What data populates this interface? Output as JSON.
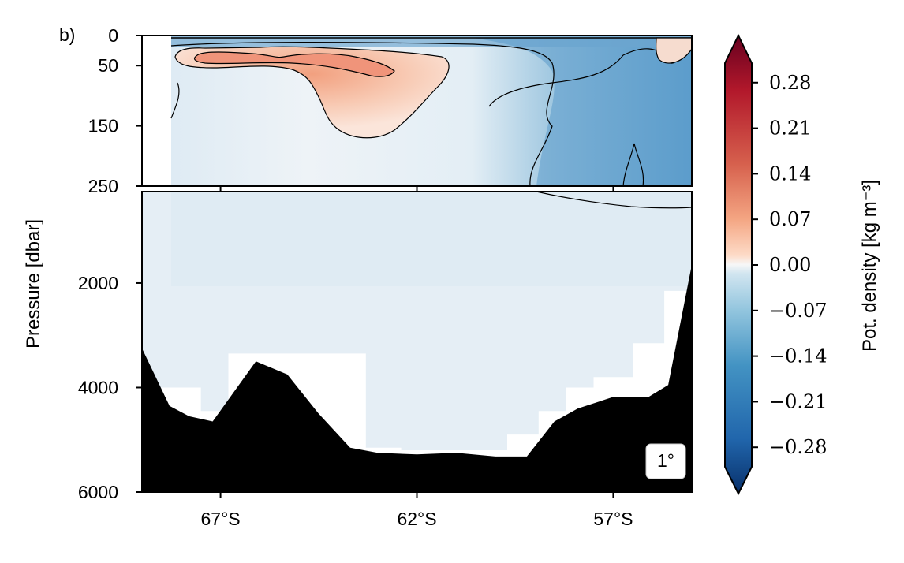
{
  "chart_data": {
    "type": "heatmap",
    "panel_label": "b)",
    "ylabel": "Pressure [dbar]",
    "colorbar_label": "Pot. density [kg m⁻³]",
    "badge": "1°",
    "xlim": [
      -69,
      -55
    ],
    "x_ticks": [
      -67,
      -62,
      -57
    ],
    "x_tick_labels": [
      "67°S",
      "62°S",
      "57°S"
    ],
    "upper_panel": {
      "ylim": [
        250,
        0
      ],
      "y_ticks": [
        0,
        50,
        150,
        250
      ],
      "y_tick_labels": [
        "0",
        "50",
        "150",
        "250"
      ]
    },
    "lower_panel": {
      "ylim": [
        6000,
        250
      ],
      "y_ticks": [
        2000,
        4000,
        6000
      ],
      "y_tick_labels": [
        "2000",
        "4000",
        "6000"
      ]
    },
    "colorbar": {
      "range": [
        -0.31,
        0.31
      ],
      "ticks": [
        0.28,
        0.21,
        0.14,
        0.07,
        0.0,
        -0.07,
        -0.14,
        -0.21,
        -0.28
      ],
      "tick_labels": [
        "0.28",
        "0.21",
        "0.14",
        "0.07",
        "0.00",
        "−0.07",
        "−0.14",
        "−0.21",
        "−0.28"
      ],
      "colormap": "RdBu_r",
      "extend": "both"
    },
    "bathymetry": {
      "lat": [
        -69,
        -68.3,
        -67.8,
        -67.2,
        -66.1,
        -65.3,
        -64.5,
        -63.7,
        -63.0,
        -62.0,
        -61.0,
        -60.0,
        -59.2,
        -58.5,
        -57.9,
        -57.0,
        -56.1,
        -55.6,
        -55
      ],
      "depth": [
        3250,
        4350,
        4550,
        4650,
        3500,
        3750,
        4500,
        5150,
        5250,
        5280,
        5250,
        5320,
        5320,
        4650,
        4400,
        4180,
        4180,
        3950,
        1650
      ]
    },
    "data_mask_edge": {
      "lat": [
        -68.3,
        -67.5,
        -66.8,
        -64.0,
        -63.3,
        -62.4,
        -61.5,
        -59.7,
        -58.9,
        -58.2,
        -57.5,
        -56.5,
        -55.7
      ],
      "depth": [
        4000,
        4450,
        3350,
        3350,
        5150,
        5200,
        5200,
        4900,
        4450,
        4000,
        3800,
        3150,
        2150
      ]
    }
  }
}
